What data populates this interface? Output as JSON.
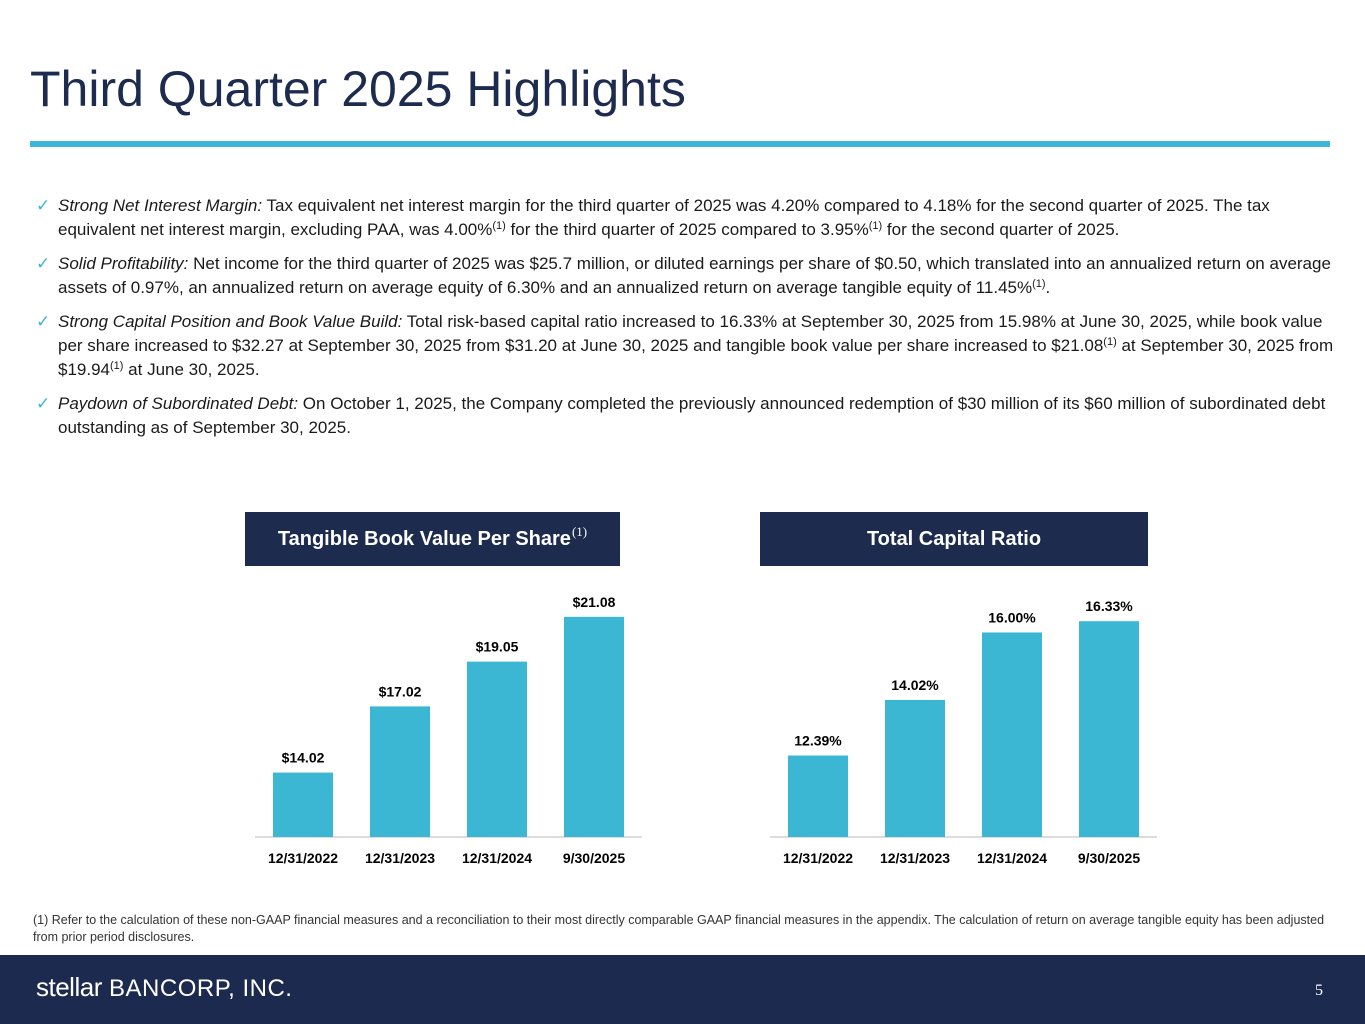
{
  "title": "Third Quarter 2025 Highlights",
  "bullets": [
    {
      "lead": "Strong Net Interest Margin:",
      "parts": [
        "Tax equivalent net interest margin for the third quarter of 2025 was 4.20% compared to 4.18% for the second quarter of 2025. The tax equivalent net interest margin, excluding PAA, was 4.00%",
        "(1)",
        " for the third quarter of 2025 compared to 3.95%",
        "(1)",
        " for the second quarter of 2025."
      ]
    },
    {
      "lead": "Solid Profitability:",
      "parts": [
        "Net income for the third quarter of 2025 was $25.7 million, or diluted earnings per share of $0.50, which translated into an annualized return on average assets of 0.97%, an annualized return on average equity of 6.30% and an annualized return on average tangible equity of 11.45%",
        "(1)",
        "."
      ]
    },
    {
      "lead": "Strong Capital Position and Book Value Build:",
      "parts": [
        "Total risk-based capital ratio increased to 16.33% at September 30, 2025 from 15.98% at June 30, 2025, while book value per share increased to $32.27 at September 30, 2025 from $31.20 at June 30, 2025 and tangible book value per share increased to $21.08",
        "(1)",
        " at September 30, 2025 from $19.94",
        "(1)",
        " at June 30, 2025."
      ]
    },
    {
      "lead": "Paydown of Subordinated Debt:",
      "parts": [
        "On October 1, 2025, the Company completed the previously announced redemption of $30 million of its $60 million of subordinated debt outstanding as of September 30, 2025."
      ]
    }
  ],
  "check_icon": "check-icon",
  "chart_data": [
    {
      "type": "bar",
      "title": "Tangible Book Value Per Share",
      "title_sup": "(1)",
      "categories": [
        "12/31/2022",
        "12/31/2023",
        "12/31/2024",
        "9/30/2025"
      ],
      "values": [
        14.02,
        17.02,
        19.05,
        21.08
      ],
      "labels": [
        "$14.02",
        "$17.02",
        "$19.05",
        "$21.08"
      ],
      "ylim": [
        11.1,
        21.3
      ],
      "color": "#3bb6d3",
      "grid": false
    },
    {
      "type": "bar",
      "title": "Total Capital Ratio",
      "categories": [
        "12/31/2022",
        "12/31/2023",
        "12/31/2024",
        "9/30/2025"
      ],
      "values": [
        12.39,
        14.02,
        16.0,
        16.33
      ],
      "labels": [
        "12.39%",
        "14.02%",
        "16.00%",
        "16.33%"
      ],
      "ylim": [
        10.0,
        16.6
      ],
      "color": "#3bb6d3",
      "grid": false
    }
  ],
  "footnote": "(1) Refer to the calculation of these non-GAAP financial measures and a reconciliation to their most directly comparable GAAP financial measures in the appendix. The calculation of return on average tangible equity has been adjusted from prior period disclosures.",
  "footer": {
    "logo_a": "stellar",
    "logo_b": "BANCORP, INC.",
    "page": "5"
  }
}
